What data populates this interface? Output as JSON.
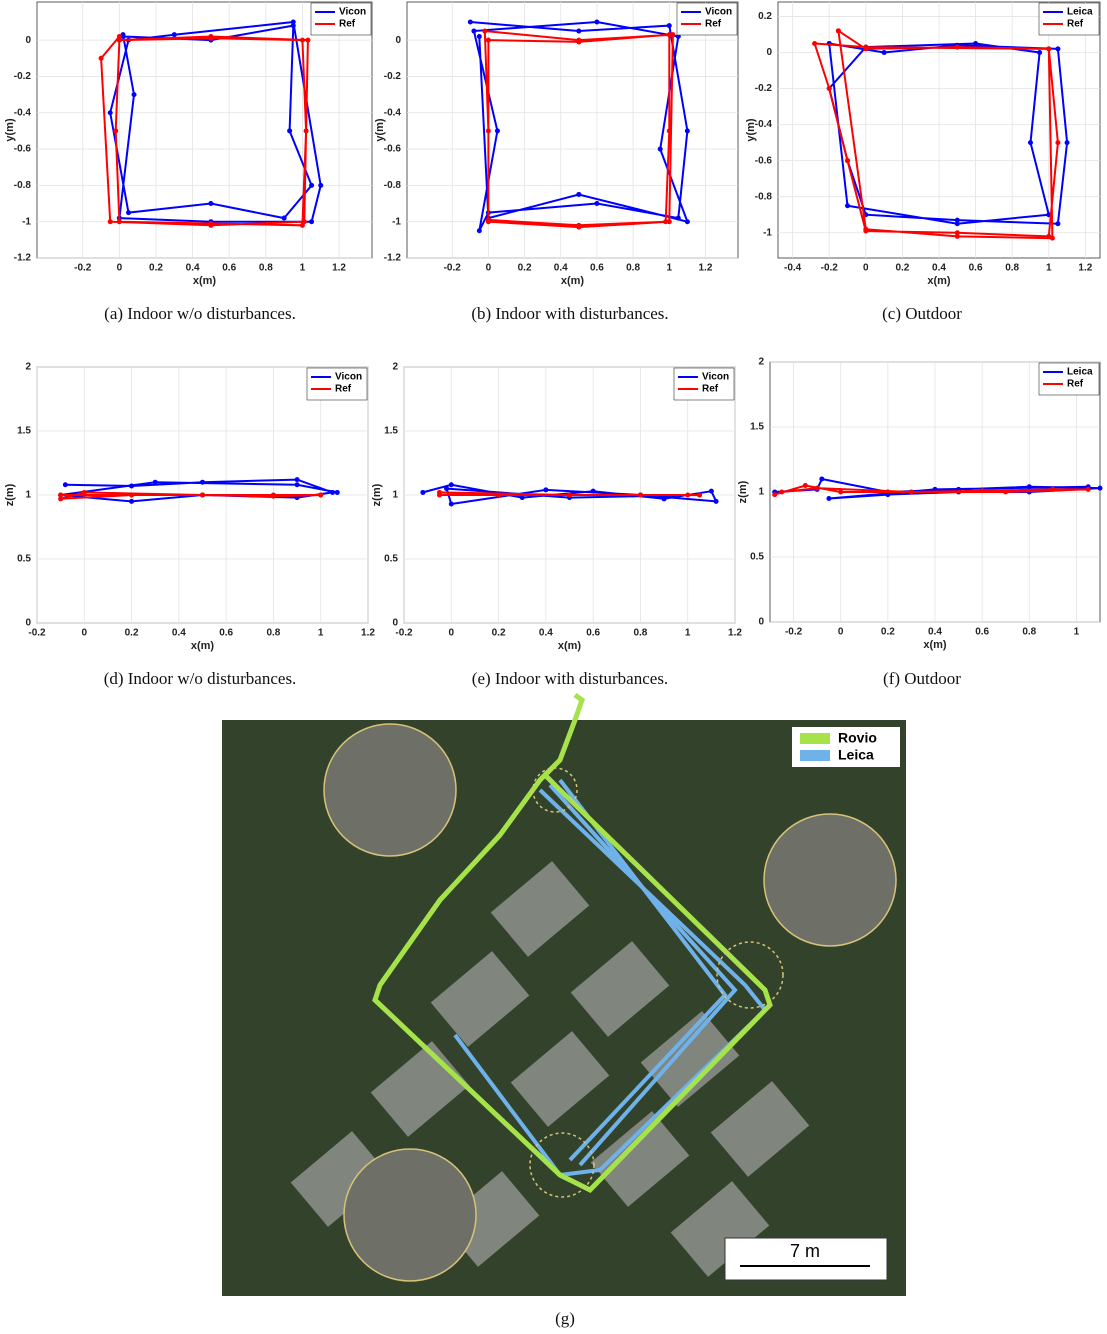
{
  "chart_data": [
    {
      "type": "line",
      "caption": "(a) Indoor w/o disturbances.",
      "xlabel": "x(m)",
      "ylabel": "y(m)",
      "xlim": [
        -0.45,
        1.38
      ],
      "ylim": [
        -1.2,
        0.21
      ],
      "xticks": [
        -0.2,
        0,
        0.2,
        0.4,
        0.6,
        0.8,
        1,
        1.2
      ],
      "yticks": [
        -1.2,
        -1,
        -0.8,
        -0.6,
        -0.4,
        -0.2,
        0
      ],
      "grid": true,
      "legend": "upper right",
      "markers": true,
      "series": [
        {
          "name": "Vicon",
          "color": "#0000ff",
          "x": [
            0.02,
            0.5,
            0.95,
            0.93,
            1.05,
            0.9,
            0.5,
            0.05,
            -0.05,
            0.05,
            0.3,
            0.95,
            1.1,
            1.05,
            0.5,
            0,
            0.08,
            0.02
          ],
          "values": [
            0.02,
            0.0,
            0.08,
            -0.5,
            -0.8,
            -0.98,
            -0.9,
            -0.95,
            -0.4,
            0.0,
            0.03,
            0.1,
            -0.8,
            -1.0,
            -1.0,
            -0.98,
            -0.3,
            0.03
          ]
        },
        {
          "name": "Ref",
          "color": "#ff0000",
          "x": [
            0,
            0.5,
            1.0,
            1.02,
            1.0,
            0.5,
            0,
            -0.02,
            0,
            0.5,
            1.03,
            1.01,
            0.5,
            -0.05,
            -0.1,
            0
          ],
          "values": [
            0,
            0.01,
            0.0,
            -0.5,
            -1.02,
            -1.01,
            -1.0,
            -0.5,
            0,
            0.02,
            0.0,
            -1.0,
            -1.02,
            -1.0,
            -0.1,
            0.02
          ]
        }
      ]
    },
    {
      "type": "line",
      "caption": "(b) Indoor with disturbances.",
      "xlabel": "x(m)",
      "ylabel": "y(m)",
      "xlim": [
        -0.45,
        1.38
      ],
      "ylim": [
        -1.2,
        0.21
      ],
      "xticks": [
        -0.2,
        0,
        0.2,
        0.4,
        0.6,
        0.8,
        1,
        1.2
      ],
      "yticks": [
        -1.2,
        -1,
        -0.8,
        -0.6,
        -0.4,
        -0.2,
        0
      ],
      "grid": true,
      "legend": "upper right",
      "markers": true,
      "series": [
        {
          "name": "Vicon",
          "color": "#0000ff",
          "x": [
            -0.1,
            0.5,
            1.0,
            1.1,
            1.05,
            0.6,
            0.0,
            -0.05,
            0.05,
            -0.08,
            0.6,
            1.05,
            0.95,
            1.1,
            0.5,
            0.0,
            -0.05
          ],
          "values": [
            0.1,
            0.05,
            0.08,
            -0.5,
            -0.98,
            -0.9,
            -0.95,
            -1.05,
            -0.5,
            0.05,
            0.1,
            0.02,
            -0.6,
            -1.0,
            -0.85,
            -0.98,
            0.02
          ]
        },
        {
          "name": "Ref",
          "color": "#ff0000",
          "x": [
            0,
            0.5,
            1.0,
            1.0,
            0.98,
            0.5,
            0,
            0,
            -0.02,
            0.5,
            1.02,
            1.0,
            0.5,
            0.0,
            0.0
          ],
          "values": [
            0,
            -0.01,
            0.03,
            -0.5,
            -1.0,
            -1.02,
            -0.99,
            -0.5,
            0.05,
            0.0,
            0.03,
            -1.0,
            -1.03,
            -1.0,
            0.0
          ]
        }
      ]
    },
    {
      "type": "line",
      "caption": "(c) Outdoor",
      "xlabel": "x(m)",
      "ylabel": "y(m)",
      "xlim": [
        -0.48,
        1.28
      ],
      "ylim": [
        -1.14,
        0.28
      ],
      "xticks": [
        -0.4,
        -0.2,
        0,
        0.2,
        0.4,
        0.6,
        0.8,
        1,
        1.2
      ],
      "yticks": [
        -1,
        -0.8,
        -0.6,
        -0.4,
        -0.2,
        0,
        0.2
      ],
      "grid": true,
      "legend": "upper right",
      "markers": true,
      "series": [
        {
          "name": "Leica",
          "color": "#0000ff",
          "x": [
            -0.2,
            0.1,
            0.5,
            1.05,
            1.1,
            1.05,
            0.5,
            0.0,
            -0.1,
            -0.2,
            0.0,
            0.6,
            0.95,
            0.9,
            1.0,
            0.5,
            -0.1,
            -0.2
          ],
          "values": [
            0.05,
            0.0,
            0.04,
            0.02,
            -0.5,
            -0.95,
            -0.93,
            -0.9,
            -0.6,
            -0.2,
            0.03,
            0.05,
            0.0,
            -0.5,
            -0.9,
            -0.95,
            -0.85,
            0.05
          ]
        },
        {
          "name": "Ref",
          "color": "#ff0000",
          "x": [
            -0.15,
            0,
            0.5,
            1.0,
            1.05,
            1.0,
            0.5,
            0,
            -0.1,
            -0.2,
            -0.28,
            0,
            1.0,
            1.02,
            0.5,
            0,
            -0.15
          ],
          "values": [
            0.12,
            0.02,
            0.03,
            0.02,
            -0.5,
            -1.02,
            -1.0,
            -0.99,
            -0.6,
            -0.2,
            0.05,
            0.03,
            0.02,
            -1.03,
            -1.02,
            -0.98,
            0.12
          ]
        }
      ]
    },
    {
      "type": "line",
      "caption": "(d) Indoor w/o disturbances.",
      "xlabel": "x(m)",
      "ylabel": "z(m)",
      "xlim": [
        -0.2,
        1.2
      ],
      "ylim": [
        0,
        2
      ],
      "xticks": [
        -0.2,
        0,
        0.2,
        0.4,
        0.6,
        0.8,
        1,
        1.2
      ],
      "yticks": [
        0,
        0.5,
        1,
        1.5,
        2
      ],
      "grid": true,
      "legend": "upper right",
      "markers": true,
      "series": [
        {
          "name": "Vicon",
          "color": "#0000ff",
          "x": [
            -0.08,
            0.2,
            0.5,
            0.9,
            1.05,
            0.9,
            0.5,
            0.2,
            -0.1,
            0.3,
            0.9,
            1.07
          ],
          "values": [
            1.08,
            1.07,
            1.1,
            1.12,
            1.02,
            0.98,
            1.0,
            0.95,
            1.0,
            1.1,
            1.08,
            1.02
          ]
        },
        {
          "name": "Ref",
          "color": "#ff0000",
          "x": [
            -0.1,
            0.2,
            0.5,
            0.8,
            1.0,
            0.8,
            0.5,
            0.2,
            -0.1,
            0,
            0.5,
            1.0
          ],
          "values": [
            1.0,
            1.0,
            1.0,
            1.0,
            1.0,
            0.99,
            1.0,
            1.0,
            0.97,
            1.02,
            1.0,
            1.0
          ]
        }
      ]
    },
    {
      "type": "line",
      "caption": "(e) Indoor with disturbances.",
      "xlabel": "x(m)",
      "ylabel": "z(m)",
      "xlim": [
        -0.2,
        1.2
      ],
      "ylim": [
        0,
        2
      ],
      "xticks": [
        -0.2,
        0,
        0.2,
        0.4,
        0.6,
        0.8,
        1,
        1.2
      ],
      "yticks": [
        0,
        0.5,
        1,
        1.5,
        2
      ],
      "grid": true,
      "legend": "upper right",
      "markers": true,
      "series": [
        {
          "name": "Vicon",
          "color": "#0000ff",
          "x": [
            -0.12,
            0.0,
            0.3,
            0.6,
            0.9,
            1.1,
            1.12,
            0.8,
            0.4,
            0.0,
            -0.02,
            0.5,
            1.05
          ],
          "values": [
            1.02,
            1.08,
            0.98,
            1.03,
            0.97,
            1.03,
            0.95,
            1.0,
            1.04,
            0.93,
            1.05,
            0.98,
            1.0
          ]
        },
        {
          "name": "Ref",
          "color": "#ff0000",
          "x": [
            -0.05,
            0.2,
            0.5,
            0.8,
            1.05,
            0.8,
            0.5,
            0.2,
            -0.05,
            0.5,
            1.0
          ],
          "values": [
            1.0,
            1.0,
            1.0,
            1.0,
            1.0,
            1.0,
            1.0,
            1.0,
            1.02,
            1.0,
            1.0
          ]
        }
      ]
    },
    {
      "type": "line",
      "caption": "(f) Outdoor",
      "xlabel": "x(m)",
      "ylabel": "z(m)",
      "xlim": [
        -0.3,
        1.1
      ],
      "ylim": [
        0,
        2
      ],
      "xticks": [
        -0.2,
        0,
        0.2,
        0.4,
        0.6,
        0.8,
        1
      ],
      "yticks": [
        0,
        0.5,
        1,
        1.5,
        2
      ],
      "grid": true,
      "legend": "upper right",
      "markers": true,
      "series": [
        {
          "name": "Leica",
          "color": "#0000ff",
          "x": [
            -0.28,
            -0.1,
            -0.08,
            0.2,
            0.5,
            0.8,
            1.1,
            0.8,
            0.5,
            0.2,
            -0.05,
            0.4,
            1.05
          ],
          "values": [
            1.0,
            1.02,
            1.1,
            1.0,
            1.02,
            1.04,
            1.03,
            1.0,
            1.0,
            0.98,
            0.95,
            1.02,
            1.04
          ]
        },
        {
          "name": "Ref",
          "color": "#ff0000",
          "x": [
            -0.28,
            -0.15,
            0.0,
            0.3,
            0.6,
            0.9,
            1.05,
            0.7,
            0.3,
            -0.1,
            -0.25
          ],
          "values": [
            0.98,
            1.05,
            1.0,
            1.0,
            1.01,
            1.02,
            1.02,
            1.0,
            1.0,
            1.03,
            1.0
          ]
        }
      ]
    }
  ],
  "image_panel": {
    "legend": [
      "Rovio",
      "Leica"
    ],
    "scale_label": "7 m",
    "caption": "(g)"
  }
}
